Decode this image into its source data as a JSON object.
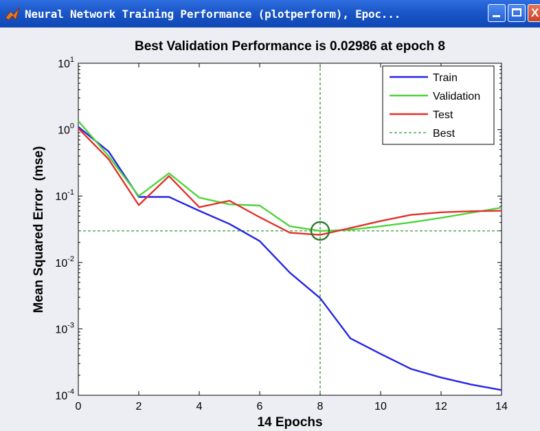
{
  "window": {
    "title": "Neural Network Training Performance (plotperform), Epoc...",
    "icon": "matlab-logo-icon",
    "buttons": {
      "minimize": "minimize-icon",
      "maximize": "maximize-icon",
      "close": "close-icon"
    }
  },
  "chart_data": {
    "type": "line",
    "title": "Best Validation Performance is 0.02986 at epoch 8",
    "xlabel": "14 Epochs",
    "ylabel": "Mean Squared Error  (mse)",
    "xlim": [
      0,
      14
    ],
    "ylim": [
      0.0001,
      10
    ],
    "yscale": "log",
    "grid": false,
    "legend_position": "top-right",
    "x_ticks": [
      "0",
      "2",
      "4",
      "6",
      "8",
      "10",
      "12",
      "14"
    ],
    "y_ticks": [
      {
        "base": "10",
        "exp": "1",
        "value": 10
      },
      {
        "base": "10",
        "exp": "0",
        "value": 1
      },
      {
        "base": "10",
        "exp": "-1",
        "value": 0.1
      },
      {
        "base": "10",
        "exp": "-2",
        "value": 0.01
      },
      {
        "base": "10",
        "exp": "-3",
        "value": 0.001
      },
      {
        "base": "10",
        "exp": "-4",
        "value": 0.0001
      }
    ],
    "x": [
      0,
      1,
      2,
      3,
      4,
      5,
      6,
      7,
      8,
      9,
      10,
      11,
      12,
      13,
      14
    ],
    "series": [
      {
        "name": "Train",
        "color": "#2424e6",
        "style": "solid",
        "values": [
          1.1,
          0.47,
          0.097,
          0.097,
          0.06,
          0.038,
          0.021,
          0.007,
          0.0029,
          0.00072,
          0.00042,
          0.00025,
          0.000185,
          0.000145,
          0.00012
        ]
      },
      {
        "name": "Validation",
        "color": "#4ed43a",
        "style": "solid",
        "values": [
          1.35,
          0.4,
          0.1,
          0.22,
          0.095,
          0.075,
          0.072,
          0.035,
          0.02986,
          0.031,
          0.035,
          0.04,
          0.047,
          0.056,
          0.067
        ]
      },
      {
        "name": "Test",
        "color": "#e0312a",
        "style": "solid",
        "values": [
          1.05,
          0.36,
          0.073,
          0.2,
          0.068,
          0.085,
          0.048,
          0.028,
          0.026,
          0.033,
          0.042,
          0.052,
          0.057,
          0.059,
          0.06
        ]
      },
      {
        "name": "Best",
        "color": "#2f9a2f",
        "style": "dashed",
        "best_epoch": 8,
        "best_value": 0.02986
      }
    ]
  }
}
